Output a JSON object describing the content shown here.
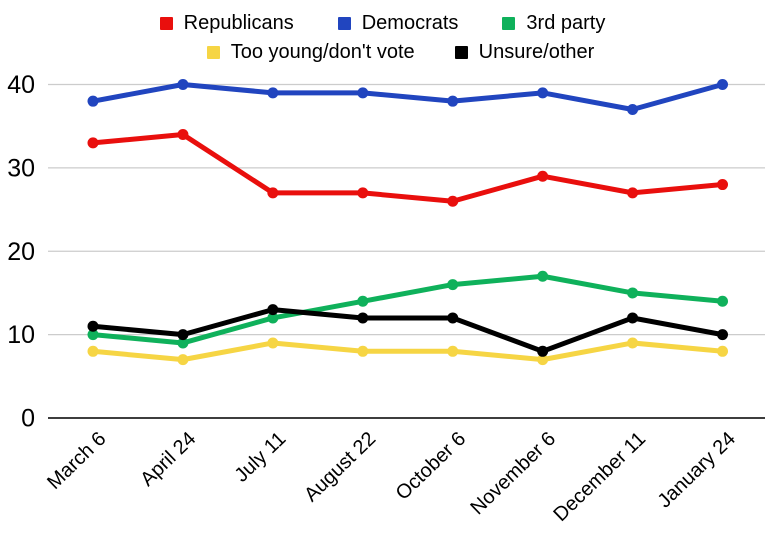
{
  "chart_data": {
    "type": "line",
    "title": "",
    "xlabel": "",
    "ylabel": "",
    "categories": [
      "March 6",
      "April 24",
      "July 11",
      "August 22",
      "October 6",
      "November 6",
      "December 11",
      "January 24"
    ],
    "series": [
      {
        "name": "Republicans",
        "color": "#e90f0d",
        "values": [
          33,
          34,
          27,
          27,
          26,
          29,
          27,
          28
        ]
      },
      {
        "name": "Democrats",
        "color": "#2145bf",
        "values": [
          38,
          40,
          39,
          39,
          38,
          39,
          37,
          40
        ]
      },
      {
        "name": "3rd party",
        "color": "#0fb15b",
        "values": [
          10,
          9,
          12,
          14,
          16,
          17,
          15,
          14
        ]
      },
      {
        "name": "Too young/don't vote",
        "color": "#f6d544",
        "values": [
          8,
          7,
          9,
          8,
          8,
          7,
          9,
          8
        ]
      },
      {
        "name": "Unsure/other",
        "color": "#000000",
        "values": [
          11,
          10,
          13,
          12,
          12,
          8,
          12,
          10
        ]
      }
    ],
    "yticks": [
      0,
      10,
      20,
      30,
      40
    ],
    "ylim": [
      0,
      43
    ],
    "grid": true,
    "legend": {
      "position": "top",
      "rows": [
        [
          0,
          1,
          2
        ],
        [
          3,
          4
        ]
      ]
    },
    "colors": {
      "gridline": "#cccccc",
      "axis_line": "#3d3d3d",
      "label": "#000000",
      "background": "#ffffff"
    }
  }
}
